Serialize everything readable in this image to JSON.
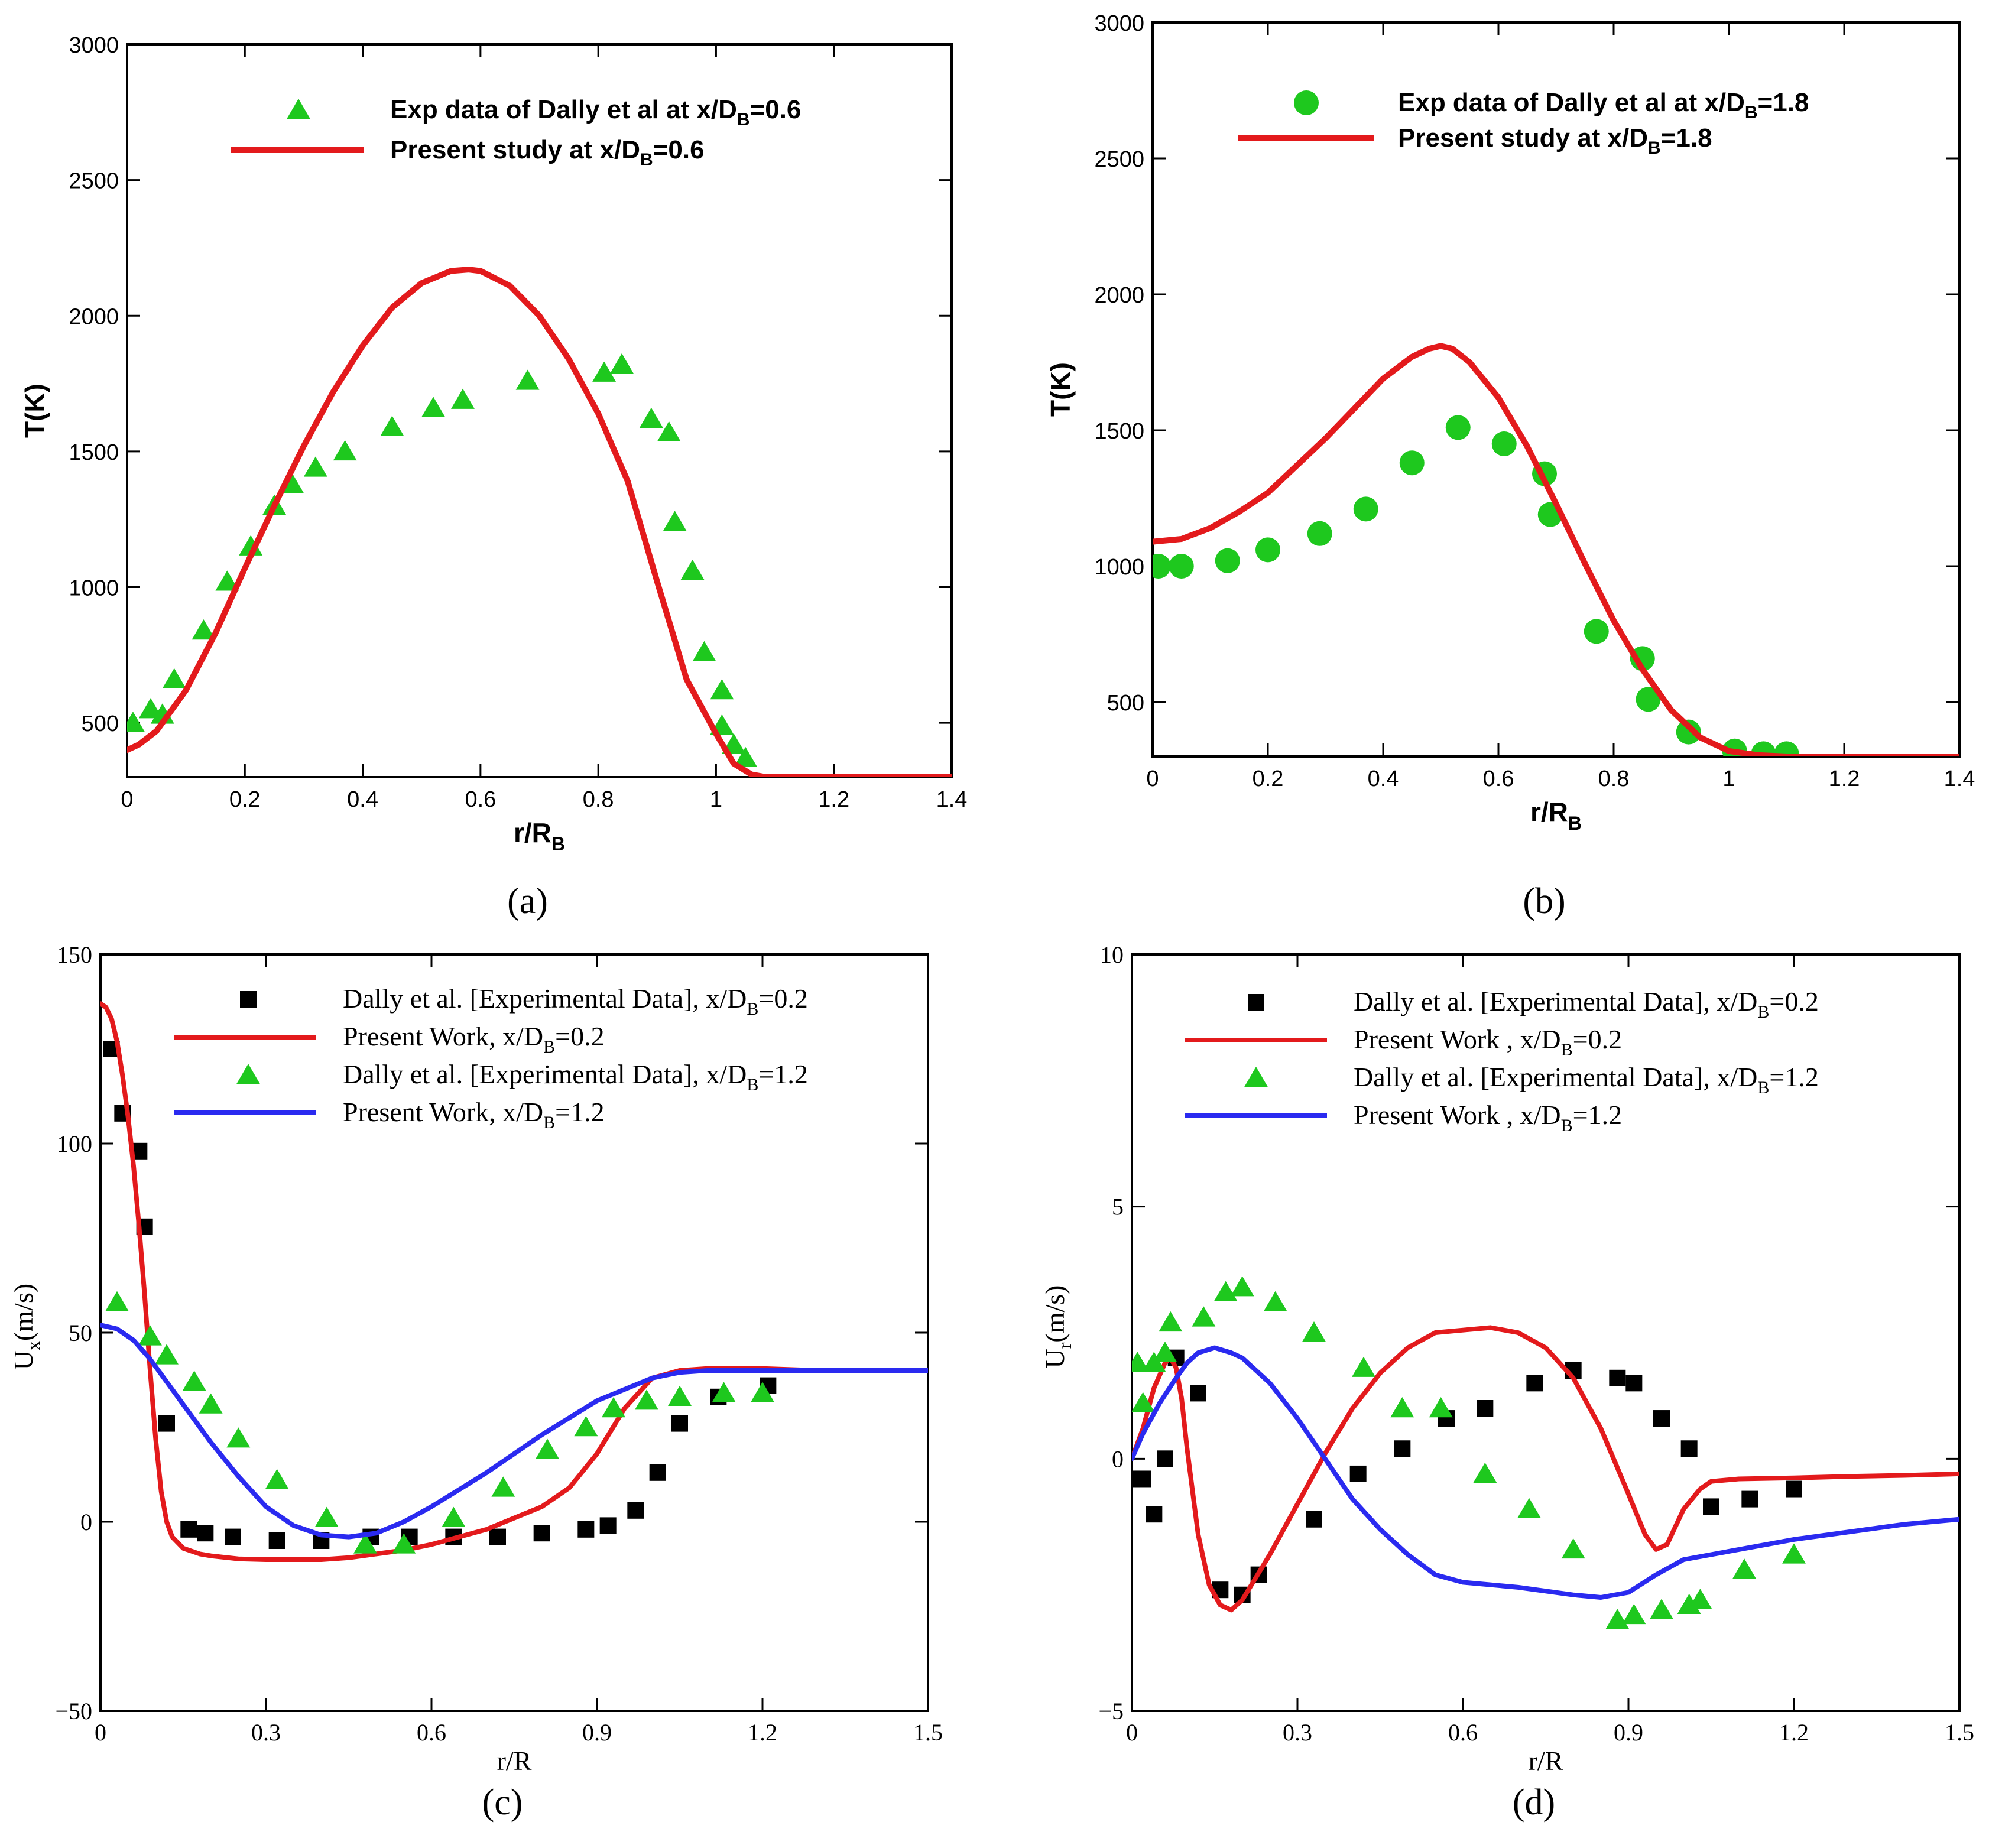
{
  "colors": {
    "red": "#e31a1c",
    "green": "#1ec81e",
    "blue": "#2a2af0",
    "black": "#000000"
  },
  "chart_data": [
    {
      "id": "a",
      "type": "line",
      "panel_label": "(a)",
      "ylabel": "T(K)",
      "xlabel_main": "r/R",
      "xlabel_sub": "B",
      "xlim": [
        0,
        1.4
      ],
      "ylim": [
        300,
        3000
      ],
      "xticks": [
        0,
        0.2,
        0.4,
        0.6,
        0.8,
        1,
        1.2,
        1.4
      ],
      "xtick_labels": [
        "0",
        "0.2",
        "0.4",
        "0.6",
        "0.8",
        "1",
        "1.2",
        "1.4"
      ],
      "yticks": [
        500,
        1000,
        1500,
        2000,
        2500,
        3000
      ],
      "ytick_labels": [
        "500",
        "1000",
        "1500",
        "2000",
        "2500",
        "3000"
      ],
      "legend": [
        {
          "series": 0,
          "text": "Exp data of Dally et al at x/D",
          "sub": "B",
          "tail": "=0.6"
        },
        {
          "series": 1,
          "text": "Present study at x/D",
          "sub": "B",
          "tail": "=0.6"
        }
      ],
      "series": [
        {
          "name": "Exp data of Dally et al at x/DB=0.6",
          "kind": "scatter",
          "marker": "triangle",
          "color": "green",
          "x": [
            0.01,
            0.04,
            0.06,
            0.08,
            0.13,
            0.17,
            0.21,
            0.25,
            0.28,
            0.32,
            0.37,
            0.45,
            0.52,
            0.57,
            0.68,
            0.81,
            0.84,
            0.89,
            0.92,
            0.93,
            0.96,
            0.98,
            1.01,
            1.01,
            1.03,
            1.05
          ],
          "y": [
            500,
            550,
            530,
            660,
            840,
            1020,
            1150,
            1300,
            1380,
            1440,
            1500,
            1590,
            1660,
            1690,
            1760,
            1790,
            1820,
            1620,
            1570,
            1240,
            1060,
            760,
            620,
            490,
            420,
            370
          ]
        },
        {
          "name": "Present study at x/DB=0.6",
          "kind": "line",
          "color": "red",
          "width": 10,
          "x": [
            0,
            0.02,
            0.05,
            0.1,
            0.15,
            0.2,
            0.25,
            0.3,
            0.35,
            0.4,
            0.45,
            0.5,
            0.55,
            0.58,
            0.6,
            0.65,
            0.7,
            0.75,
            0.8,
            0.85,
            0.9,
            0.95,
            1.0,
            1.03,
            1.06,
            1.08,
            1.1,
            1.2,
            1.3,
            1.4
          ],
          "y": [
            400,
            420,
            470,
            620,
            830,
            1070,
            1300,
            1520,
            1720,
            1890,
            2030,
            2120,
            2165,
            2170,
            2165,
            2110,
            2000,
            1840,
            1640,
            1390,
            1020,
            660,
            460,
            350,
            310,
            302,
            300,
            300,
            300,
            300
          ]
        }
      ]
    },
    {
      "id": "b",
      "type": "line",
      "panel_label": "(b)",
      "ylabel": "T(K)",
      "xlabel_main": "r/R",
      "xlabel_sub": "B",
      "xlim": [
        0,
        1.4
      ],
      "ylim": [
        300,
        3000
      ],
      "xticks": [
        0,
        0.2,
        0.4,
        0.6,
        0.8,
        1,
        1.2,
        1.4
      ],
      "xtick_labels": [
        "0",
        "0.2",
        "0.4",
        "0.6",
        "0.8",
        "1",
        "1.2",
        "1.4"
      ],
      "yticks": [
        500,
        1000,
        1500,
        2000,
        2500,
        3000
      ],
      "ytick_labels": [
        "500",
        "1000",
        "1500",
        "2000",
        "2500",
        "3000"
      ],
      "legend": [
        {
          "series": 0,
          "text": "Exp data of Dally et al at x/D",
          "sub": "B",
          "tail": "=1.8"
        },
        {
          "series": 1,
          "text": "Present study at x/D",
          "sub": "B",
          "tail": "=1.8"
        }
      ],
      "series": [
        {
          "name": "Exp data of Dally et al at x/DB=1.8",
          "kind": "scatter",
          "marker": "circle",
          "color": "green",
          "x": [
            0.01,
            0.05,
            0.13,
            0.2,
            0.29,
            0.37,
            0.45,
            0.53,
            0.61,
            0.68,
            0.69,
            0.77,
            0.85,
            0.86,
            0.93,
            1.01,
            1.06,
            1.1
          ],
          "y": [
            1000,
            1000,
            1020,
            1060,
            1120,
            1210,
            1380,
            1510,
            1450,
            1340,
            1190,
            760,
            660,
            510,
            390,
            320,
            310,
            310
          ]
        },
        {
          "name": "Present study at x/DB=1.8",
          "kind": "line",
          "color": "red",
          "width": 10,
          "x": [
            0,
            0.05,
            0.1,
            0.15,
            0.2,
            0.25,
            0.3,
            0.35,
            0.4,
            0.45,
            0.48,
            0.5,
            0.52,
            0.55,
            0.6,
            0.65,
            0.7,
            0.75,
            0.8,
            0.85,
            0.9,
            0.95,
            1.0,
            1.05,
            1.1,
            1.2,
            1.3,
            1.4
          ],
          "y": [
            1090,
            1100,
            1140,
            1200,
            1270,
            1370,
            1470,
            1580,
            1690,
            1770,
            1800,
            1810,
            1800,
            1750,
            1620,
            1440,
            1230,
            1010,
            800,
            620,
            470,
            370,
            320,
            305,
            300,
            300,
            300,
            300
          ]
        }
      ]
    },
    {
      "id": "c",
      "type": "line",
      "panel_label": "(c)",
      "ylabel_main": "U",
      "ylabel_sub": "x",
      "ylabel_tail": "(m/s)",
      "xlabel": "r/R",
      "xlim": [
        0,
        1.5
      ],
      "ylim": [
        -50,
        150
      ],
      "xticks": [
        0,
        0.3,
        0.6,
        0.9,
        1.2,
        1.5
      ],
      "xtick_labels": [
        "0",
        "0.3",
        "0.6",
        "0.9",
        "1.2",
        "1.5"
      ],
      "yticks": [
        -50,
        0,
        50,
        100,
        150
      ],
      "ytick_labels": [
        "−50",
        "0",
        "50",
        "100",
        "150"
      ],
      "legend": [
        {
          "series": 0,
          "text": "Dally et al.  [Experimental Data], x/D",
          "sub": "B",
          "tail": "=0.2"
        },
        {
          "series": 1,
          "text": "Present Work, x/D",
          "sub": "B",
          "tail": "=0.2"
        },
        {
          "series": 2,
          "text": "Dally et al.  [Experimental Data], x/D",
          "sub": "B",
          "tail": "=1.2"
        },
        {
          "series": 3,
          "text": "Present Work, x/D",
          "sub": "B",
          "tail": "=1.2"
        }
      ],
      "series": [
        {
          "name": "Dally et al. [Experimental Data], x/DB=0.2",
          "kind": "scatter",
          "marker": "square",
          "color": "black",
          "x": [
            0.02,
            0.04,
            0.07,
            0.08,
            0.12,
            0.16,
            0.19,
            0.24,
            0.32,
            0.4,
            0.49,
            0.56,
            0.64,
            0.72,
            0.8,
            0.88,
            0.92,
            0.97,
            1.01,
            1.05,
            1.12,
            1.21
          ],
          "y": [
            125,
            108,
            98,
            78,
            26,
            -2,
            -3,
            -4,
            -5,
            -5,
            -4,
            -4,
            -4,
            -4,
            -3,
            -2,
            -1,
            3,
            13,
            26,
            33,
            36
          ]
        },
        {
          "name": "Present Work, x/DB=0.2",
          "kind": "line",
          "color": "red",
          "width": 8,
          "x": [
            0,
            0.01,
            0.02,
            0.03,
            0.04,
            0.05,
            0.06,
            0.07,
            0.08,
            0.09,
            0.1,
            0.11,
            0.12,
            0.13,
            0.15,
            0.18,
            0.2,
            0.25,
            0.3,
            0.35,
            0.4,
            0.45,
            0.5,
            0.55,
            0.6,
            0.7,
            0.8,
            0.85,
            0.9,
            0.95,
            1.0,
            1.05,
            1.1,
            1.2,
            1.3,
            1.4,
            1.5
          ],
          "y": [
            137,
            136,
            133,
            127,
            118,
            107,
            94,
            78,
            60,
            40,
            22,
            8,
            0,
            -4,
            -7,
            -8.5,
            -9,
            -9.8,
            -10,
            -10,
            -10,
            -9.5,
            -8.5,
            -7.5,
            -6,
            -2,
            4,
            9,
            18,
            30,
            38,
            40,
            40.5,
            40.5,
            40,
            40,
            40
          ]
        },
        {
          "name": "Dally et al. [Experimental Data], x/DB=1.2",
          "kind": "scatter",
          "marker": "triangle",
          "color": "green",
          "x": [
            0.03,
            0.09,
            0.12,
            0.17,
            0.2,
            0.25,
            0.32,
            0.41,
            0.48,
            0.55,
            0.64,
            0.73,
            0.81,
            0.88,
            0.93,
            0.99,
            1.05,
            1.13,
            1.2
          ],
          "y": [
            58,
            49,
            44,
            37,
            31,
            22,
            11,
            1,
            -6,
            -6,
            1,
            9,
            19,
            25,
            30,
            32,
            33,
            34,
            34
          ]
        },
        {
          "name": "Present Work, x/DB=1.2",
          "kind": "line",
          "color": "blue",
          "width": 8,
          "x": [
            0,
            0.03,
            0.06,
            0.09,
            0.12,
            0.15,
            0.2,
            0.25,
            0.3,
            0.35,
            0.4,
            0.45,
            0.5,
            0.55,
            0.6,
            0.7,
            0.8,
            0.9,
            1.0,
            1.05,
            1.1,
            1.2,
            1.3,
            1.4,
            1.5
          ],
          "y": [
            52,
            51,
            48,
            43,
            37,
            31,
            21,
            12,
            4,
            -1,
            -3.5,
            -4,
            -3,
            0,
            4,
            13,
            23,
            32,
            38,
            39.5,
            40,
            40,
            40,
            40,
            40
          ]
        }
      ]
    },
    {
      "id": "d",
      "type": "line",
      "panel_label": "(d)",
      "ylabel_main": "U",
      "ylabel_sub": "r",
      "ylabel_tail": "(m/s)",
      "xlabel": "r/R",
      "xlim": [
        0,
        1.5
      ],
      "ylim": [
        -5,
        10
      ],
      "xticks": [
        0,
        0.3,
        0.6,
        0.9,
        1.2,
        1.5
      ],
      "xtick_labels": [
        "0",
        "0.3",
        "0.6",
        "0.9",
        "1.2",
        "1.5"
      ],
      "yticks": [
        -5,
        0,
        5,
        10
      ],
      "ytick_labels": [
        "−5",
        "0",
        "5",
        "10"
      ],
      "legend": [
        {
          "series": 0,
          "text": "Dally et al. [Experimental Data], x/D",
          "sub": "B",
          "tail": "=0.2"
        },
        {
          "series": 1,
          "text": "Present Work , x/D",
          "sub": "B",
          "tail": "=0.2"
        },
        {
          "series": 2,
          "text": "Dally et al. [Experimental Data], x/D",
          "sub": "B",
          "tail": "=1.2"
        },
        {
          "series": 3,
          "text": "Present Work , x/D",
          "sub": "B",
          "tail": "=1.2"
        }
      ],
      "series": [
        {
          "name": "Dally et al. [Experimental Data], x/DB=0.2",
          "kind": "scatter",
          "marker": "square",
          "color": "black",
          "x": [
            0.0,
            0.02,
            0.04,
            0.06,
            0.08,
            0.12,
            0.16,
            0.2,
            0.23,
            0.33,
            0.41,
            0.49,
            0.57,
            0.64,
            0.73,
            0.8,
            0.88,
            0.91,
            0.96,
            1.01,
            1.05,
            1.12,
            1.2
          ],
          "y": [
            -0.4,
            -0.4,
            -1.1,
            0,
            2.0,
            1.3,
            -2.6,
            -2.7,
            -2.3,
            -1.2,
            -0.3,
            0.2,
            0.8,
            1.0,
            1.5,
            1.75,
            1.6,
            1.5,
            0.8,
            0.2,
            -0.95,
            -0.8,
            -0.6
          ]
        },
        {
          "name": "Present Work , x/DB=0.2",
          "kind": "line",
          "color": "red",
          "width": 8,
          "x": [
            0,
            0.02,
            0.04,
            0.06,
            0.07,
            0.08,
            0.09,
            0.1,
            0.12,
            0.14,
            0.16,
            0.18,
            0.2,
            0.25,
            0.3,
            0.35,
            0.4,
            0.45,
            0.5,
            0.55,
            0.6,
            0.65,
            0.7,
            0.75,
            0.8,
            0.85,
            0.9,
            0.93,
            0.95,
            0.97,
            1.0,
            1.03,
            1.05,
            1.1,
            1.2,
            1.3,
            1.4,
            1.5
          ],
          "y": [
            0,
            0.6,
            1.4,
            1.9,
            2.0,
            1.8,
            1.2,
            0.2,
            -1.5,
            -2.5,
            -2.9,
            -3.0,
            -2.8,
            -1.9,
            -0.9,
            0.1,
            1.0,
            1.7,
            2.2,
            2.5,
            2.55,
            2.6,
            2.5,
            2.2,
            1.6,
            0.6,
            -0.7,
            -1.5,
            -1.8,
            -1.7,
            -1.0,
            -0.6,
            -0.45,
            -0.4,
            -0.38,
            -0.35,
            -0.33,
            -0.3
          ]
        },
        {
          "name": "Dally et al. [Experimental Data], x/DB=1.2",
          "kind": "scatter",
          "marker": "triangle",
          "color": "green",
          "x": [
            0.01,
            0.02,
            0.04,
            0.06,
            0.07,
            0.13,
            0.17,
            0.2,
            0.26,
            0.33,
            0.42,
            0.49,
            0.56,
            0.64,
            0.72,
            0.8,
            0.88,
            0.91,
            0.96,
            1.01,
            1.03,
            1.11,
            1.2
          ],
          "y": [
            1.9,
            1.1,
            1.9,
            2.1,
            2.7,
            2.8,
            3.3,
            3.4,
            3.1,
            2.5,
            1.8,
            1.0,
            1.0,
            -0.3,
            -1.0,
            -1.8,
            -3.2,
            -3.1,
            -3.0,
            -2.9,
            -2.8,
            -2.2,
            -1.9
          ]
        },
        {
          "name": "Present Work , x/DB=1.2",
          "kind": "line",
          "color": "blue",
          "width": 8,
          "x": [
            0,
            0.02,
            0.05,
            0.08,
            0.1,
            0.12,
            0.15,
            0.18,
            0.2,
            0.25,
            0.3,
            0.35,
            0.4,
            0.45,
            0.5,
            0.55,
            0.6,
            0.7,
            0.8,
            0.85,
            0.9,
            0.95,
            1.0,
            1.1,
            1.2,
            1.3,
            1.4,
            1.5
          ],
          "y": [
            0,
            0.5,
            1.1,
            1.6,
            1.9,
            2.1,
            2.2,
            2.1,
            2.0,
            1.5,
            0.8,
            0,
            -0.8,
            -1.4,
            -1.9,
            -2.3,
            -2.45,
            -2.55,
            -2.7,
            -2.75,
            -2.65,
            -2.3,
            -2.0,
            -1.8,
            -1.6,
            -1.45,
            -1.3,
            -1.2
          ]
        }
      ]
    }
  ]
}
